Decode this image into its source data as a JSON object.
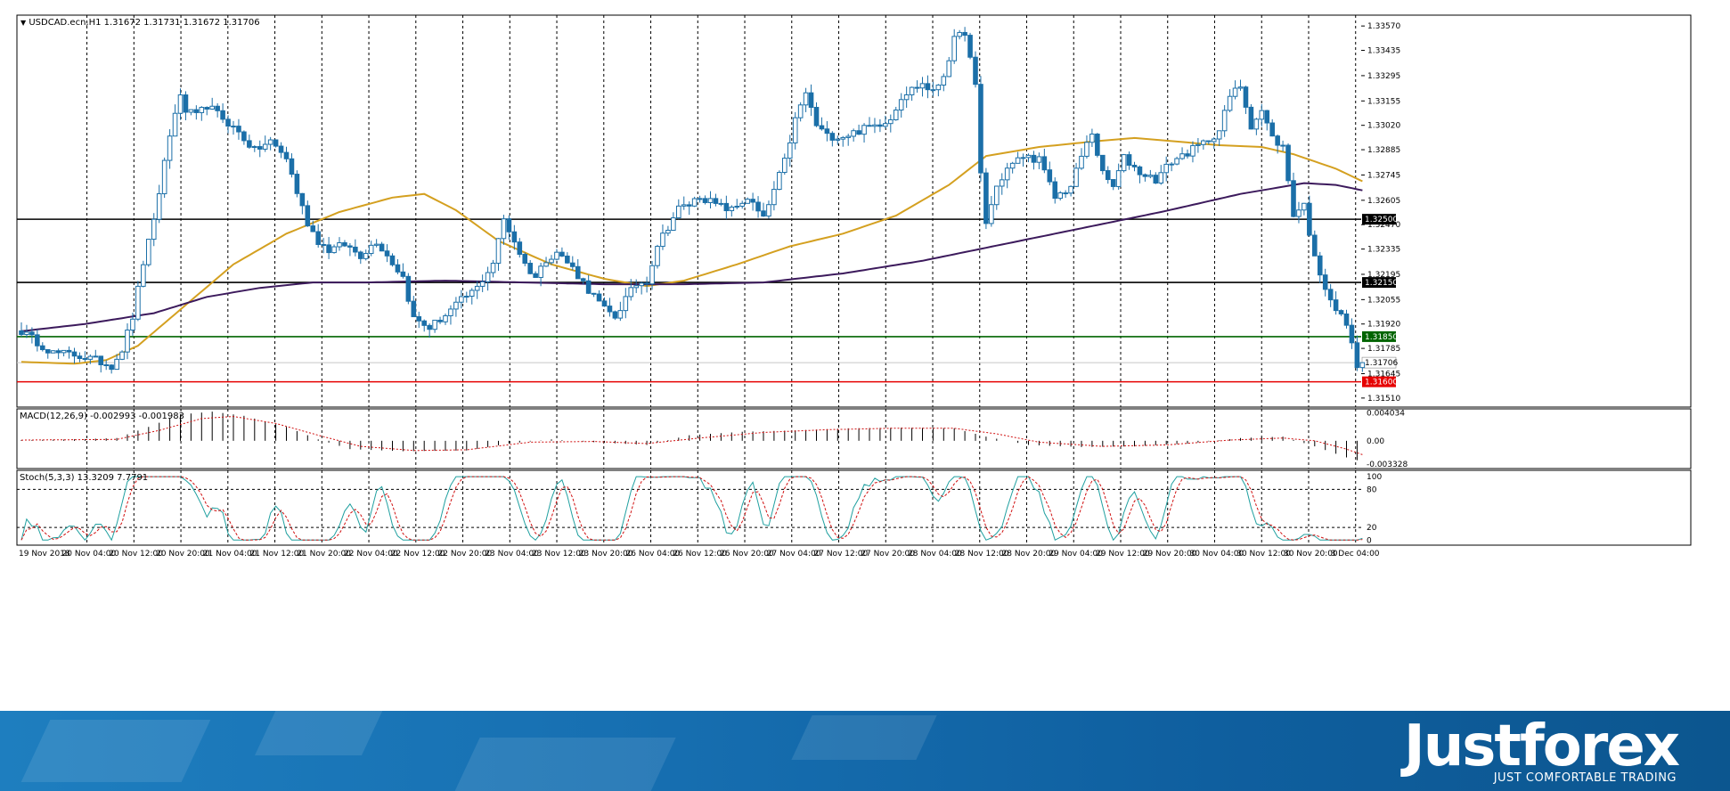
{
  "chart_data": {
    "type": "candlestick",
    "symbol_title": "USDCAD.ecn,H1  1.31672 1.31731 1.31672 1.31706",
    "price_axis": {
      "ylim": [
        1.3146,
        1.3363
      ],
      "ticks": [
        "1.33570",
        "1.33435",
        "1.33295",
        "1.33155",
        "1.33020",
        "1.32885",
        "1.32745",
        "1.32605",
        "1.32470",
        "1.32335",
        "1.32195",
        "1.32055",
        "1.31920",
        "1.31785",
        "1.31645",
        "1.31510"
      ],
      "tick_values": [
        1.3357,
        1.33435,
        1.33295,
        1.33155,
        1.3302,
        1.32885,
        1.32745,
        1.32605,
        1.3247,
        1.32335,
        1.32195,
        1.32055,
        1.3192,
        1.31785,
        1.31645,
        1.3151
      ]
    },
    "levels": [
      {
        "label": "1.32500",
        "value": 1.325,
        "color": "#000000"
      },
      {
        "label": "1.32150",
        "value": 1.3215,
        "color": "#000000"
      },
      {
        "label": "1.31850",
        "value": 1.3185,
        "color": "#006400"
      },
      {
        "label": "1.31600",
        "value": 1.316,
        "color": "#e60000"
      }
    ],
    "current_price": {
      "label": "1.31706",
      "value": 1.31706
    },
    "time_labels": [
      "19 Nov 2018",
      "20 Nov 04:00",
      "20 Nov 12:00",
      "20 Nov 20:00",
      "21 Nov 04:00",
      "21 Nov 12:00",
      "21 Nov 20:00",
      "22 Nov 04:00",
      "22 Nov 12:00",
      "22 Nov 20:00",
      "23 Nov 04:00",
      "23 Nov 12:00",
      "23 Nov 20:00",
      "26 Nov 04:00",
      "26 Nov 12:00",
      "26 Nov 20:00",
      "27 Nov 04:00",
      "27 Nov 12:00",
      "27 Nov 20:00",
      "28 Nov 04:00",
      "28 Nov 12:00",
      "28 Nov 20:00",
      "29 Nov 04:00",
      "29 Nov 12:00",
      "29 Nov 20:00",
      "30 Nov 04:00",
      "30 Nov 12:00",
      "30 Nov 20:00",
      "3 Dec 04:00"
    ],
    "close_path": [
      [
        0,
        1.3188
      ],
      [
        3,
        1.3182
      ],
      [
        6,
        1.3176
      ],
      [
        10,
        1.3175
      ],
      [
        14,
        1.3172
      ],
      [
        17,
        1.3169
      ],
      [
        19,
        1.3178
      ],
      [
        21,
        1.3196
      ],
      [
        23,
        1.3226
      ],
      [
        25,
        1.3248
      ],
      [
        27,
        1.3282
      ],
      [
        29,
        1.331
      ],
      [
        30,
        1.3317
      ],
      [
        31,
        1.331
      ],
      [
        33,
        1.3307
      ],
      [
        35,
        1.3313
      ],
      [
        38,
        1.3306
      ],
      [
        41,
        1.3298
      ],
      [
        44,
        1.3288
      ],
      [
        47,
        1.3293
      ],
      [
        50,
        1.3284
      ],
      [
        52,
        1.3265
      ],
      [
        54,
        1.3248
      ],
      [
        56,
        1.3238
      ],
      [
        58,
        1.3233
      ],
      [
        61,
        1.3236
      ],
      [
        64,
        1.323
      ],
      [
        67,
        1.3238
      ],
      [
        70,
        1.3226
      ],
      [
        72,
        1.3218
      ],
      [
        74,
        1.3195
      ],
      [
        77,
        1.319
      ],
      [
        80,
        1.3197
      ],
      [
        83,
        1.3205
      ],
      [
        86,
        1.3212
      ],
      [
        89,
        1.3226
      ],
      [
        91,
        1.325
      ],
      [
        93,
        1.3238
      ],
      [
        95,
        1.3225
      ],
      [
        97,
        1.3218
      ],
      [
        99,
        1.3228
      ],
      [
        101,
        1.3232
      ],
      [
        104,
        1.3223
      ],
      [
        107,
        1.3211
      ],
      [
        110,
        1.32
      ],
      [
        112,
        1.3196
      ],
      [
        114,
        1.3206
      ],
      [
        116,
        1.3214
      ],
      [
        118,
        1.3216
      ],
      [
        120,
        1.3236
      ],
      [
        122,
        1.3246
      ],
      [
        124,
        1.3256
      ],
      [
        126,
        1.3258
      ],
      [
        128,
        1.3263
      ],
      [
        131,
        1.3258
      ],
      [
        134,
        1.3255
      ],
      [
        137,
        1.3262
      ],
      [
        140,
        1.325
      ],
      [
        142,
        1.3266
      ],
      [
        144,
        1.3282
      ],
      [
        146,
        1.3305
      ],
      [
        148,
        1.332
      ],
      [
        150,
        1.3302
      ],
      [
        152,
        1.3296
      ],
      [
        155,
        1.3296
      ],
      [
        158,
        1.3299
      ],
      [
        161,
        1.3302
      ],
      [
        164,
        1.3306
      ],
      [
        166,
        1.3318
      ],
      [
        168,
        1.3322
      ],
      [
        170,
        1.3325
      ],
      [
        172,
        1.332
      ],
      [
        174,
        1.333
      ],
      [
        176,
        1.3349
      ],
      [
        178,
        1.3354
      ],
      [
        180,
        1.3323
      ],
      [
        181,
        1.3275
      ],
      [
        182,
        1.3248
      ],
      [
        184,
        1.3268
      ],
      [
        186,
        1.3278
      ],
      [
        189,
        1.3285
      ],
      [
        192,
        1.3283
      ],
      [
        195,
        1.3262
      ],
      [
        198,
        1.3268
      ],
      [
        200,
        1.3285
      ],
      [
        202,
        1.3298
      ],
      [
        204,
        1.3275
      ],
      [
        206,
        1.3268
      ],
      [
        208,
        1.3284
      ],
      [
        211,
        1.3276
      ],
      [
        214,
        1.3272
      ],
      [
        217,
        1.3282
      ],
      [
        220,
        1.3287
      ],
      [
        223,
        1.3292
      ],
      [
        226,
        1.3299
      ],
      [
        228,
        1.3318
      ],
      [
        230,
        1.3324
      ],
      [
        232,
        1.3302
      ],
      [
        234,
        1.331
      ],
      [
        236,
        1.3295
      ],
      [
        238,
        1.329
      ],
      [
        240,
        1.3253
      ],
      [
        242,
        1.3258
      ],
      [
        244,
        1.3228
      ],
      [
        246,
        1.3213
      ],
      [
        248,
        1.32
      ],
      [
        250,
        1.3192
      ],
      [
        251,
        1.318
      ],
      [
        252,
        1.317
      ],
      [
        253,
        1.31706
      ]
    ],
    "ma_gold": [
      [
        0,
        1.3171
      ],
      [
        10,
        1.317
      ],
      [
        16,
        1.3172
      ],
      [
        22,
        1.318
      ],
      [
        30,
        1.32
      ],
      [
        40,
        1.3225
      ],
      [
        50,
        1.3242
      ],
      [
        60,
        1.3254
      ],
      [
        70,
        1.3262
      ],
      [
        76,
        1.3264
      ],
      [
        82,
        1.3255
      ],
      [
        90,
        1.3238
      ],
      [
        100,
        1.3225
      ],
      [
        110,
        1.3217
      ],
      [
        118,
        1.3213
      ],
      [
        125,
        1.3216
      ],
      [
        135,
        1.3225
      ],
      [
        145,
        1.3235
      ],
      [
        155,
        1.3242
      ],
      [
        165,
        1.3252
      ],
      [
        175,
        1.3269
      ],
      [
        182,
        1.3285
      ],
      [
        192,
        1.329
      ],
      [
        202,
        1.3293
      ],
      [
        210,
        1.3295
      ],
      [
        218,
        1.3293
      ],
      [
        226,
        1.3291
      ],
      [
        234,
        1.329
      ],
      [
        240,
        1.3286
      ],
      [
        248,
        1.3278
      ],
      [
        253,
        1.3271
      ]
    ],
    "ma_purple": [
      [
        0,
        1.3188
      ],
      [
        12,
        1.3192
      ],
      [
        25,
        1.3198
      ],
      [
        35,
        1.3207
      ],
      [
        45,
        1.3212
      ],
      [
        55,
        1.3215
      ],
      [
        65,
        1.3215
      ],
      [
        80,
        1.3216
      ],
      [
        95,
        1.3215
      ],
      [
        110,
        1.3214
      ],
      [
        125,
        1.3214
      ],
      [
        140,
        1.3215
      ],
      [
        155,
        1.322
      ],
      [
        170,
        1.3227
      ],
      [
        185,
        1.3236
      ],
      [
        200,
        1.3245
      ],
      [
        215,
        1.3254
      ],
      [
        230,
        1.3264
      ],
      [
        242,
        1.327
      ],
      [
        248,
        1.3269
      ],
      [
        253,
        1.3266
      ]
    ],
    "macd": {
      "title": "MACD(12,26,9) -0.002993 -0.001983",
      "ticks": [
        "0.004034",
        "0.00",
        "-0.003328"
      ],
      "tick_values": [
        0.004034,
        0,
        -0.003328
      ],
      "ylim": [
        -0.004,
        0.0046
      ],
      "hist_path": [
        [
          0,
          0.0001
        ],
        [
          10,
          0.0002
        ],
        [
          18,
          0.0004
        ],
        [
          24,
          0.002
        ],
        [
          30,
          0.0038
        ],
        [
          36,
          0.0042
        ],
        [
          42,
          0.0036
        ],
        [
          50,
          0.002
        ],
        [
          56,
          0.0002
        ],
        [
          62,
          -0.0012
        ],
        [
          72,
          -0.0015
        ],
        [
          84,
          -0.0014
        ],
        [
          92,
          -0.0004
        ],
        [
          100,
          0.0002
        ],
        [
          108,
          -0.0002
        ],
        [
          118,
          -0.0006
        ],
        [
          126,
          0.0008
        ],
        [
          136,
          0.0013
        ],
        [
          146,
          0.0015
        ],
        [
          156,
          0.0018
        ],
        [
          166,
          0.0019
        ],
        [
          176,
          0.0018
        ],
        [
          182,
          0.0006
        ],
        [
          190,
          -0.0006
        ],
        [
          200,
          -0.0009
        ],
        [
          210,
          -0.0008
        ],
        [
          220,
          -0.0004
        ],
        [
          230,
          0.0004
        ],
        [
          238,
          0.0006
        ],
        [
          244,
          -0.0008
        ],
        [
          250,
          -0.0024
        ],
        [
          253,
          -0.003
        ]
      ],
      "signal_path": [
        [
          0,
          0.0001
        ],
        [
          18,
          0.0002
        ],
        [
          26,
          0.0015
        ],
        [
          34,
          0.0032
        ],
        [
          40,
          0.0035
        ],
        [
          48,
          0.0025
        ],
        [
          56,
          0.0008
        ],
        [
          64,
          -0.0008
        ],
        [
          74,
          -0.0014
        ],
        [
          84,
          -0.0013
        ],
        [
          96,
          -0.0002
        ],
        [
          108,
          -0.0001
        ],
        [
          118,
          -0.0004
        ],
        [
          128,
          0.0004
        ],
        [
          140,
          0.0012
        ],
        [
          152,
          0.0016
        ],
        [
          164,
          0.0018
        ],
        [
          176,
          0.0018
        ],
        [
          184,
          0.001
        ],
        [
          192,
          -0.0002
        ],
        [
          204,
          -0.0008
        ],
        [
          216,
          -0.0006
        ],
        [
          228,
          0.0001
        ],
        [
          238,
          0.0004
        ],
        [
          244,
          0.0
        ],
        [
          250,
          -0.0012
        ],
        [
          253,
          -0.002
        ]
      ]
    },
    "stoch": {
      "title": "Stoch(5,3,3) 13.3209 7.7791",
      "ticks": [
        "100",
        "80",
        "20",
        "0"
      ],
      "tick_values": [
        100,
        80,
        20,
        0
      ],
      "ylim": [
        -8,
        110
      ],
      "levels": [
        80,
        20
      ]
    }
  },
  "branding": {
    "logo": "Justforex",
    "tagline": "JUST COMFORTABLE TRADING"
  }
}
